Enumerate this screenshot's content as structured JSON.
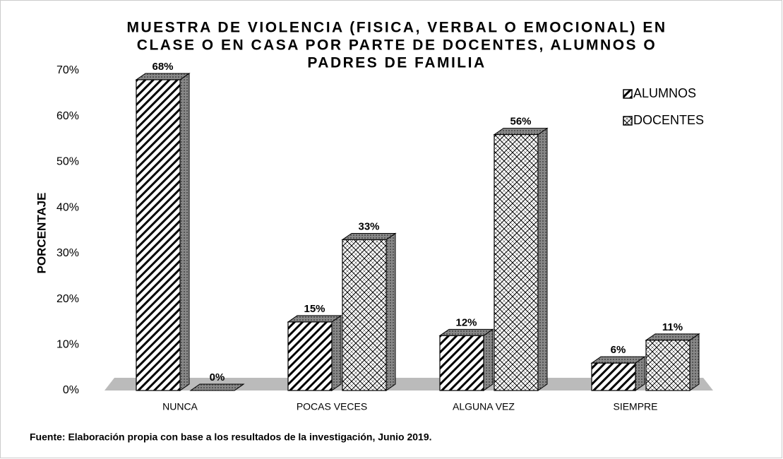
{
  "chart_data": {
    "type": "bar3d",
    "title": [
      "MUESTRA DE VIOLENCIA (FISICA, VERBAL O EMOCIONAL) EN",
      "CLASE O EN CASA POR PARTE DE DOCENTES, ALUMNOS O",
      "PADRES DE FAMILIA"
    ],
    "y_label": "PORCENTAJE",
    "categories": [
      "NUNCA",
      "POCAS VECES",
      "ALGUNA VEZ",
      "SIEMPRE"
    ],
    "series": [
      {
        "name": "ALUMNOS",
        "color": "#000000",
        "values": [
          68,
          15,
          12,
          6
        ],
        "value_labels": [
          "68%",
          "15%",
          "12%",
          "6%"
        ]
      },
      {
        "name": "DOCENTES",
        "color": "#000000",
        "values": [
          0,
          33,
          56,
          11
        ],
        "value_labels": [
          "0%",
          "33%",
          "56%",
          "11%"
        ]
      }
    ],
    "ylim": [
      0,
      70
    ],
    "yticks": [
      {
        "value": 0,
        "label": "0%"
      },
      {
        "value": 10,
        "label": "10%"
      },
      {
        "value": 20,
        "label": "20%"
      },
      {
        "value": 30,
        "label": "30%"
      },
      {
        "value": 40,
        "label": "40%"
      },
      {
        "value": 50,
        "label": "50%"
      },
      {
        "value": 60,
        "label": "60%"
      },
      {
        "value": 70,
        "label": "70%"
      }
    ],
    "legend": "top-right",
    "source": "Fuente: Elaboración propia con base a los resultados de la investigación, Junio 2019."
  }
}
